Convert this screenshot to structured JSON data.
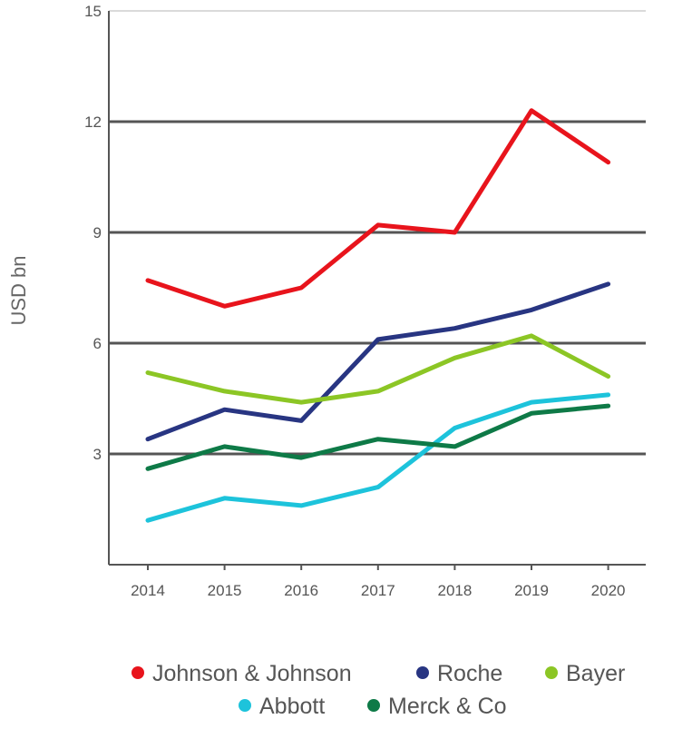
{
  "chart_data": {
    "type": "line",
    "title": "",
    "xlabel": "",
    "ylabel": "USD bn",
    "x": [
      "2014",
      "2015",
      "2016",
      "2017",
      "2018",
      "2019",
      "2020"
    ],
    "yticks": [
      "3",
      "6",
      "9",
      "12",
      "15"
    ],
    "ylim": [
      0,
      15
    ],
    "grid": true,
    "legend_position": "bottom",
    "series": [
      {
        "name": "Johnson & Johnson",
        "color": "#e8141c",
        "values": [
          7.7,
          7.0,
          7.5,
          9.2,
          9.0,
          12.3,
          10.9
        ]
      },
      {
        "name": "Roche",
        "color": "#283582",
        "values": [
          3.4,
          4.2,
          3.9,
          6.1,
          6.4,
          6.9,
          7.6
        ]
      },
      {
        "name": "Bayer",
        "color": "#8cc625",
        "values": [
          5.2,
          4.7,
          4.4,
          4.7,
          5.6,
          6.2,
          5.1
        ]
      },
      {
        "name": "Abbott",
        "color": "#1dc3db",
        "values": [
          1.2,
          1.8,
          1.6,
          2.1,
          3.7,
          4.4,
          4.6
        ]
      },
      {
        "name": "Merck & Co",
        "color": "#0e7a47",
        "values": [
          2.6,
          3.2,
          2.9,
          3.4,
          3.2,
          4.1,
          4.3
        ]
      }
    ]
  }
}
